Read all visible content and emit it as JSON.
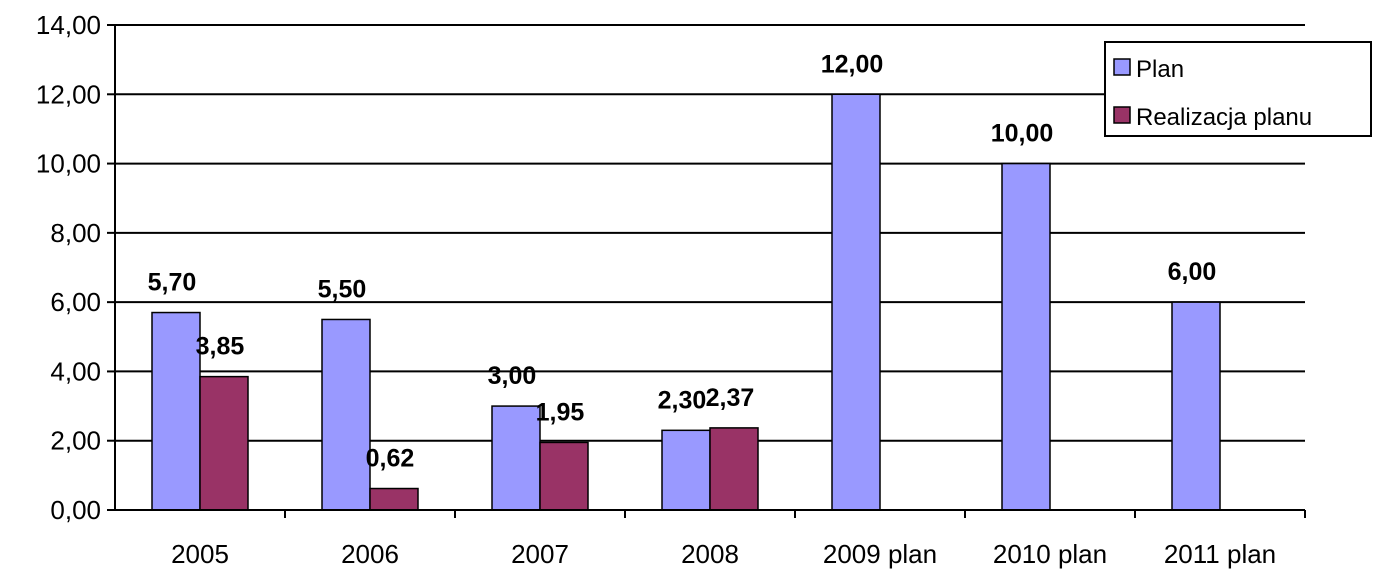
{
  "chart_data": {
    "type": "bar",
    "categories": [
      "2005",
      "2006",
      "2007",
      "2008",
      "2009 plan",
      "2010 plan",
      "2011 plan"
    ],
    "series": [
      {
        "name": "Plan",
        "values": [
          5.7,
          5.5,
          3.0,
          2.3,
          12.0,
          10.0,
          6.0
        ],
        "labels": [
          "5,70",
          "5,50",
          "3,00",
          "2,30",
          "12,00",
          "10,00",
          "6,00"
        ],
        "color": "#9999ff"
      },
      {
        "name": "Realizacja planu",
        "values": [
          3.85,
          0.62,
          1.95,
          2.37,
          null,
          null,
          null
        ],
        "labels": [
          "3,85",
          "0,62",
          "1,95",
          "2,37",
          "",
          "",
          ""
        ],
        "color": "#993366"
      }
    ],
    "yticks": [
      "0,00",
      "2,00",
      "4,00",
      "6,00",
      "8,00",
      "10,00",
      "12,00",
      "14,00"
    ],
    "ylim": [
      0,
      14
    ],
    "grid": true,
    "legend_position": "top-right"
  }
}
